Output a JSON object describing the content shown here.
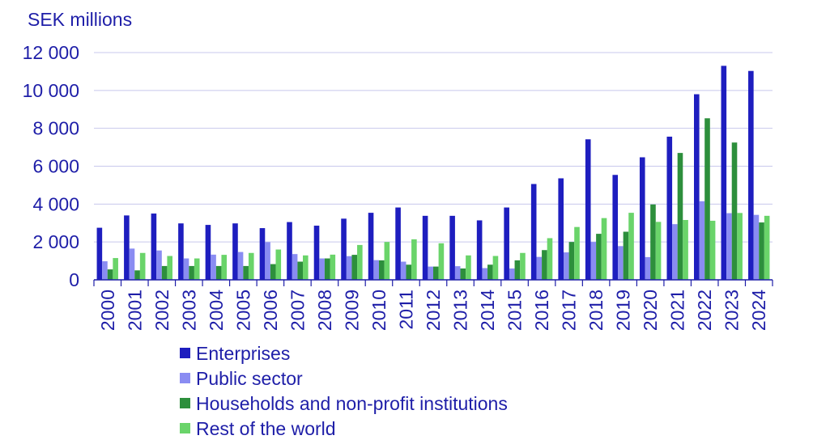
{
  "chart_data": {
    "type": "bar",
    "ylabel": "SEK millions",
    "ylim": [
      0,
      12000
    ],
    "yticks": [
      0,
      2000,
      4000,
      6000,
      8000,
      10000,
      12000
    ],
    "ytick_labels": [
      "0",
      "2 000",
      "4 000",
      "6 000",
      "8 000",
      "10 000",
      "12 000"
    ],
    "grid": true,
    "legend_position": "bottom",
    "categories": [
      "2000",
      "2001",
      "2002",
      "2003",
      "2004",
      "2005",
      "2006",
      "2007",
      "2008",
      "2009",
      "2010",
      "2011",
      "2012",
      "2013",
      "2014",
      "2015",
      "2016",
      "2017",
      "2018",
      "2019",
      "2020",
      "2021",
      "2022",
      "2023",
      "2024"
    ],
    "series": [
      {
        "name": "Enterprises",
        "color": "#1e1ebf",
        "values": [
          2750,
          3400,
          3500,
          2980,
          2900,
          2980,
          2730,
          3050,
          2860,
          3230,
          3540,
          3820,
          3380,
          3380,
          3140,
          3820,
          5060,
          5360,
          7420,
          5540,
          6470,
          7560,
          9800,
          11300,
          11030
        ]
      },
      {
        "name": "Public sector",
        "color": "#8a8cf2",
        "values": [
          980,
          1650,
          1550,
          1130,
          1330,
          1470,
          1990,
          1360,
          1130,
          1250,
          1040,
          960,
          700,
          720,
          620,
          600,
          1210,
          1450,
          2000,
          1780,
          1200,
          2940,
          4150,
          3520,
          3430
        ]
      },
      {
        "name": "Households and non-profit institutions",
        "color": "#2d8f3c",
        "values": [
          550,
          500,
          730,
          730,
          730,
          730,
          830,
          960,
          1130,
          1320,
          1030,
          800,
          700,
          600,
          800,
          1030,
          1570,
          2000,
          2430,
          2540,
          3980,
          6700,
          8530,
          7250,
          3030
        ]
      },
      {
        "name": "Rest of the world",
        "color": "#6ad46a",
        "values": [
          1150,
          1420,
          1260,
          1130,
          1320,
          1420,
          1600,
          1290,
          1330,
          1840,
          2000,
          2140,
          1930,
          1290,
          1260,
          1420,
          2200,
          2790,
          3260,
          3540,
          3060,
          3160,
          3120,
          3530,
          3380
        ]
      }
    ]
  }
}
